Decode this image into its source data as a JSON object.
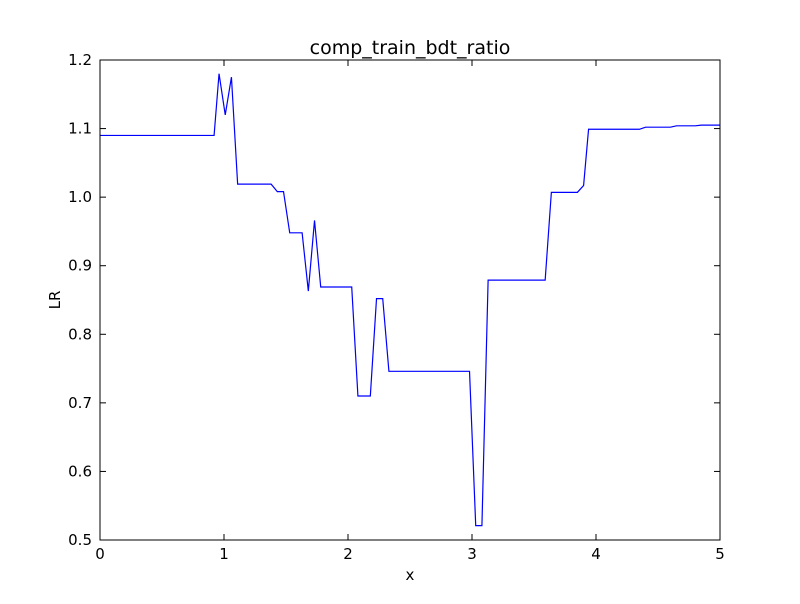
{
  "chart_data": {
    "type": "line",
    "title": "comp_train_bdt_ratio",
    "xlabel": "x",
    "ylabel": "LR",
    "xlim": [
      0,
      5
    ],
    "ylim": [
      0.5,
      1.2
    ],
    "xticks": [
      0,
      1,
      2,
      3,
      4,
      5
    ],
    "xtick_labels": [
      "0",
      "1",
      "2",
      "3",
      "4",
      "5"
    ],
    "yticks": [
      0.5,
      0.6,
      0.7,
      0.8,
      0.9,
      1.0,
      1.1,
      1.2
    ],
    "ytick_labels": [
      "0.5",
      "0.6",
      "0.7",
      "0.8",
      "0.9",
      "1.0",
      "1.1",
      "1.2"
    ],
    "grid": false,
    "series": [
      {
        "color": "#0000ff",
        "x": [
          0.0,
          0.7,
          0.92,
          0.96,
          1.01,
          1.06,
          1.11,
          1.38,
          1.43,
          1.48,
          1.53,
          1.63,
          1.68,
          1.73,
          1.78,
          2.03,
          2.08,
          2.18,
          2.23,
          2.28,
          2.33,
          2.98,
          3.03,
          3.08,
          3.13,
          3.59,
          3.64,
          3.85,
          3.9,
          3.94,
          4.35,
          4.4,
          4.6,
          4.65,
          4.8,
          4.85,
          5.0
        ],
        "y": [
          1.09,
          1.09,
          1.09,
          1.18,
          1.12,
          1.175,
          1.019,
          1.019,
          1.008,
          1.008,
          0.948,
          0.948,
          0.863,
          0.966,
          0.869,
          0.869,
          0.71,
          0.71,
          0.852,
          0.852,
          0.746,
          0.746,
          0.521,
          0.521,
          0.879,
          0.879,
          1.007,
          1.007,
          1.017,
          1.099,
          1.099,
          1.102,
          1.102,
          1.104,
          1.104,
          1.105,
          1.105
        ]
      }
    ]
  }
}
